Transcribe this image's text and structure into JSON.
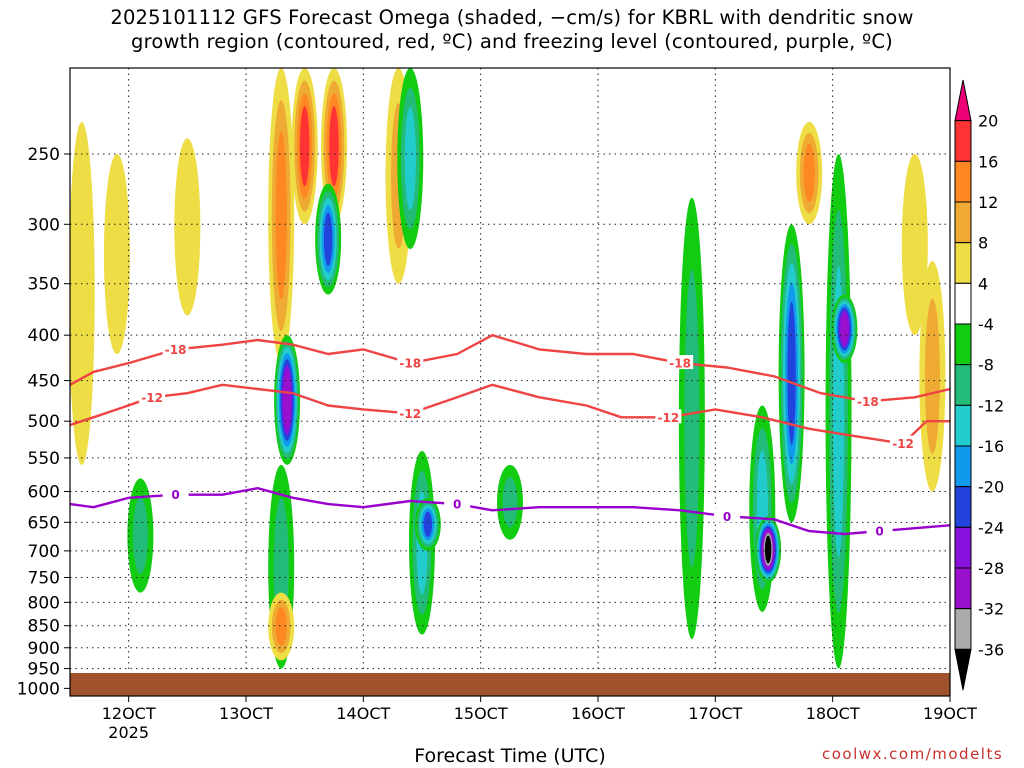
{
  "title": {
    "line1": "2025101112 GFS Forecast Omega (shaded, −cm/s) for KBRL with dendritic snow",
    "line2": "growth region (contoured, red, ºC) and freezing level (contoured, purple, ºC)"
  },
  "credit": "coolwx.com/modelts",
  "chart_data": {
    "type": "heatmap",
    "xlabel": "Forecast Time (UTC)",
    "ylabel": "",
    "x_ticks": [
      {
        "label": "12OCT",
        "sub": "2025",
        "day": 12
      },
      {
        "label": "13OCT",
        "day": 13
      },
      {
        "label": "14OCT",
        "day": 14
      },
      {
        "label": "15OCT",
        "day": 15
      },
      {
        "label": "16OCT",
        "day": 16
      },
      {
        "label": "17OCT",
        "day": 17
      },
      {
        "label": "18OCT",
        "day": 18
      },
      {
        "label": "19OCT",
        "day": 19
      }
    ],
    "xlim": [
      11.5,
      19
    ],
    "y_ticks": [
      250,
      300,
      350,
      400,
      450,
      500,
      550,
      600,
      650,
      700,
      750,
      800,
      850,
      900,
      950,
      1000
    ],
    "ylim_pressure_hPa": [
      200,
      1020
    ],
    "grid": true,
    "colorbar": {
      "levels": [
        "20",
        "16",
        "12",
        "8",
        "4",
        "-4",
        "-8",
        "-12",
        "-16",
        "-20",
        "-24",
        "-28",
        "-32",
        "-36"
      ],
      "colors": [
        "#ee0077",
        "#ff3333",
        "#ff8822",
        "#eeaa33",
        "#eedd44",
        "#ffffff",
        "#11cc11",
        "#22bb77",
        "#22cccc",
        "#1199ee",
        "#2244dd",
        "#8811dd",
        "#9911cc",
        "#aaaaaa",
        "#000000"
      ]
    },
    "omega_features": [
      {
        "day": 11.6,
        "p_top": 230,
        "p_bot": 560,
        "value": 6
      },
      {
        "day": 11.9,
        "p_top": 250,
        "p_bot": 420,
        "value": 6
      },
      {
        "day": 12.5,
        "p_top": 240,
        "p_bot": 380,
        "value": 5
      },
      {
        "day": 13.3,
        "p_top": 200,
        "p_bot": 430,
        "value": 12
      },
      {
        "day": 13.5,
        "p_top": 200,
        "p_bot": 300,
        "value": 18
      },
      {
        "day": 13.3,
        "p_top": 560,
        "p_bot": 950,
        "value": -8
      },
      {
        "day": 13.3,
        "p_top": 780,
        "p_bot": 930,
        "value": 12
      },
      {
        "day": 13.35,
        "p_top": 400,
        "p_bot": 560,
        "value": -30
      },
      {
        "day": 13.75,
        "p_top": 200,
        "p_bot": 300,
        "value": 16
      },
      {
        "day": 13.7,
        "p_top": 270,
        "p_bot": 360,
        "value": -20
      },
      {
        "day": 14.3,
        "p_top": 200,
        "p_bot": 350,
        "value": 10
      },
      {
        "day": 14.4,
        "p_top": 200,
        "p_bot": 320,
        "value": -14
      },
      {
        "day": 14.5,
        "p_top": 540,
        "p_bot": 870,
        "value": -12
      },
      {
        "day": 14.55,
        "p_top": 610,
        "p_bot": 700,
        "value": -22
      },
      {
        "day": 15.25,
        "p_top": 560,
        "p_bot": 680,
        "value": -10
      },
      {
        "day": 16.8,
        "p_top": 280,
        "p_bot": 880,
        "value": -8
      },
      {
        "day": 17.4,
        "p_top": 480,
        "p_bot": 820,
        "value": -14
      },
      {
        "day": 17.45,
        "p_top": 640,
        "p_bot": 760,
        "value": -36
      },
      {
        "day": 17.65,
        "p_top": 300,
        "p_bot": 650,
        "value": -20
      },
      {
        "day": 18.05,
        "p_top": 250,
        "p_bot": 950,
        "value": -12
      },
      {
        "day": 18.1,
        "p_top": 360,
        "p_bot": 430,
        "value": -28
      },
      {
        "day": 18.7,
        "p_top": 250,
        "p_bot": 400,
        "value": 6
      },
      {
        "day": 18.85,
        "p_top": 330,
        "p_bot": 600,
        "value": 8
      },
      {
        "day": 17.8,
        "p_top": 230,
        "p_bot": 300,
        "value": 12
      },
      {
        "day": 12.1,
        "p_top": 580,
        "p_bot": 780,
        "value": -8
      }
    ],
    "contours": [
      {
        "label": "-18",
        "color": "#ee4444",
        "x": [
          11.5,
          11.7,
          12.0,
          12.4,
          12.8,
          13.1,
          13.4,
          13.7,
          14.0,
          14.4,
          14.8,
          15.1,
          15.5,
          15.9,
          16.3,
          16.7,
          17.1,
          17.5,
          17.9,
          18.3,
          18.7,
          19.0
        ],
        "y": [
          455,
          440,
          430,
          415,
          410,
          405,
          410,
          420,
          415,
          430,
          420,
          400,
          415,
          420,
          420,
          430,
          435,
          445,
          465,
          475,
          470,
          460
        ]
      },
      {
        "label": "-12",
        "color": "#ee4444",
        "x": [
          11.5,
          11.7,
          11.9,
          12.2,
          12.5,
          12.8,
          13.1,
          13.4,
          13.7,
          14.0,
          14.4,
          14.8,
          15.1,
          15.5,
          15.9,
          16.2,
          16.6,
          17.0,
          17.4,
          17.8,
          18.2,
          18.6,
          18.8,
          19.0
        ],
        "y": [
          505,
          495,
          485,
          470,
          465,
          455,
          460,
          465,
          480,
          485,
          490,
          470,
          455,
          470,
          480,
          495,
          495,
          485,
          495,
          510,
          520,
          530,
          500,
          500
        ]
      },
      {
        "label": "0",
        "color": "#9900cc",
        "x": [
          11.5,
          11.7,
          12.0,
          12.4,
          12.8,
          13.1,
          13.4,
          13.7,
          14.0,
          14.4,
          14.8,
          15.1,
          15.5,
          15.9,
          16.3,
          16.7,
          17.1,
          17.5,
          17.8,
          18.1,
          18.4,
          18.7,
          19.0
        ],
        "y": [
          620,
          625,
          610,
          605,
          605,
          595,
          610,
          620,
          625,
          615,
          620,
          630,
          625,
          625,
          625,
          630,
          640,
          645,
          665,
          670,
          665,
          660,
          655
        ]
      }
    ]
  }
}
